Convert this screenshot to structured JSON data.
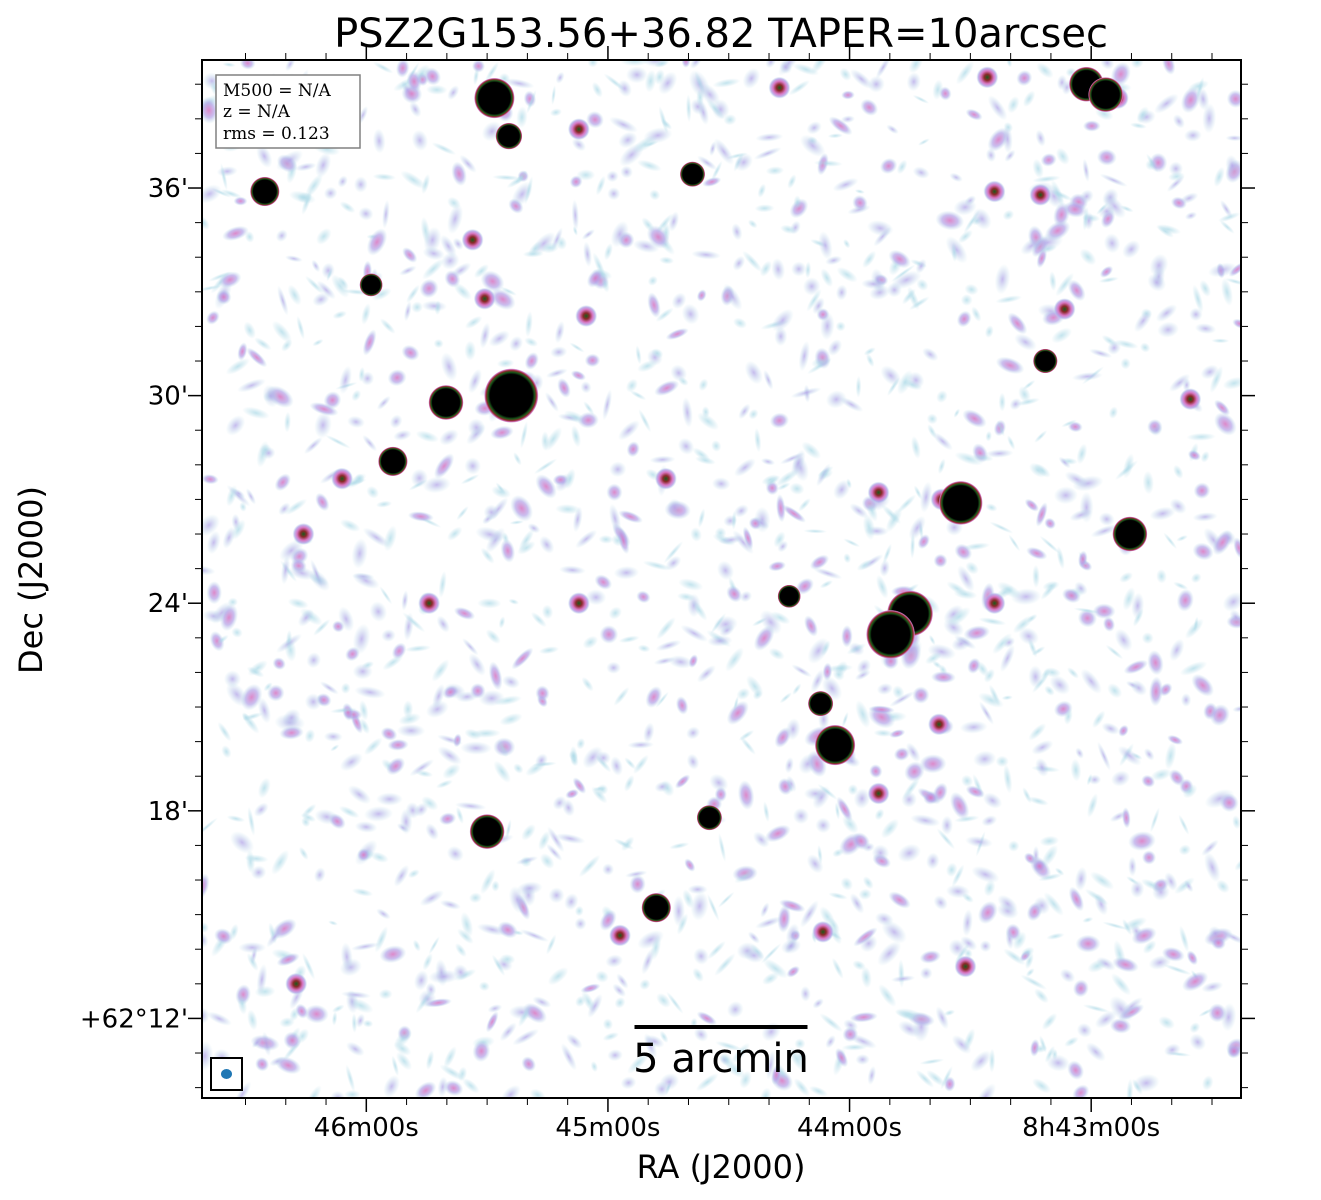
{
  "chart_data": {
    "type": "heatmap",
    "title": "PSZ2G153.56+36.82 TAPER=10arcsec",
    "xlabel": "RA (J2000)",
    "ylabel": "Dec (J2000)",
    "x_ticks": [
      "46m00s",
      "45m00s",
      "44m00s",
      "8h43m00s"
    ],
    "x_tick_values_s": [
      46,
      45,
      44,
      43
    ],
    "y_ticks": [
      "36'",
      "30'",
      "24'",
      "18'",
      "+62°12'"
    ],
    "y_tick_values_arcmin": [
      36,
      30,
      24,
      18,
      12
    ],
    "xlim_ra_min": [
      46.68,
      42.38
    ],
    "ylim_dec_arcmin": [
      9.7,
      39.7
    ],
    "info_box": [
      "M500 = N/A",
      "z = N/A",
      "rms = 0.123"
    ],
    "scalebar_label": "5 arcmin",
    "scalebar_arcmin": 5,
    "grid": false,
    "beam_color": "#1f77b4",
    "colormap": [
      "#ffffff",
      "#add8e6",
      "#b3a3e8",
      "#d874c0",
      "#8b2a2a",
      "#1a5a1a",
      "#000000"
    ],
    "bright_sources": [
      {
        "ra_min": 46.42,
        "dec_arcmin": 35.9,
        "r": 0.34
      },
      {
        "ra_min": 45.47,
        "dec_arcmin": 38.6,
        "r": 0.5
      },
      {
        "ra_min": 45.41,
        "dec_arcmin": 37.5,
        "r": 0.3
      },
      {
        "ra_min": 44.65,
        "dec_arcmin": 36.4,
        "r": 0.28
      },
      {
        "ra_min": 43.02,
        "dec_arcmin": 39.0,
        "r": 0.42
      },
      {
        "ra_min": 42.94,
        "dec_arcmin": 38.7,
        "r": 0.42
      },
      {
        "ra_min": 44.25,
        "dec_arcmin": 24.2,
        "r": 0.25
      },
      {
        "ra_min": 45.98,
        "dec_arcmin": 33.2,
        "r": 0.25
      },
      {
        "ra_min": 45.67,
        "dec_arcmin": 29.8,
        "r": 0.42
      },
      {
        "ra_min": 45.4,
        "dec_arcmin": 30.0,
        "r": 0.7
      },
      {
        "ra_min": 45.89,
        "dec_arcmin": 28.1,
        "r": 0.34
      },
      {
        "ra_min": 43.54,
        "dec_arcmin": 26.9,
        "r": 0.55
      },
      {
        "ra_min": 43.19,
        "dec_arcmin": 31.0,
        "r": 0.27
      },
      {
        "ra_min": 43.75,
        "dec_arcmin": 23.7,
        "r": 0.58
      },
      {
        "ra_min": 43.83,
        "dec_arcmin": 23.1,
        "r": 0.62
      },
      {
        "ra_min": 42.84,
        "dec_arcmin": 26.0,
        "r": 0.42
      },
      {
        "ra_min": 44.12,
        "dec_arcmin": 21.1,
        "r": 0.28
      },
      {
        "ra_min": 44.06,
        "dec_arcmin": 19.9,
        "r": 0.5
      },
      {
        "ra_min": 45.5,
        "dec_arcmin": 17.4,
        "r": 0.42
      },
      {
        "ra_min": 44.58,
        "dec_arcmin": 17.8,
        "r": 0.28
      },
      {
        "ra_min": 44.8,
        "dec_arcmin": 15.2,
        "r": 0.34
      }
    ],
    "faint_sources": [
      {
        "ra_min": 45.12,
        "dec_arcmin": 37.7
      },
      {
        "ra_min": 44.29,
        "dec_arcmin": 38.9
      },
      {
        "ra_min": 43.43,
        "dec_arcmin": 39.2
      },
      {
        "ra_min": 42.89,
        "dec_arcmin": 38.6
      },
      {
        "ra_min": 43.4,
        "dec_arcmin": 35.9
      },
      {
        "ra_min": 43.21,
        "dec_arcmin": 35.8
      },
      {
        "ra_min": 45.56,
        "dec_arcmin": 34.5
      },
      {
        "ra_min": 45.51,
        "dec_arcmin": 32.8
      },
      {
        "ra_min": 45.09,
        "dec_arcmin": 32.3
      },
      {
        "ra_min": 44.76,
        "dec_arcmin": 27.6
      },
      {
        "ra_min": 43.88,
        "dec_arcmin": 27.2
      },
      {
        "ra_min": 43.62,
        "dec_arcmin": 27.0
      },
      {
        "ra_min": 43.11,
        "dec_arcmin": 32.5
      },
      {
        "ra_min": 42.59,
        "dec_arcmin": 29.9
      },
      {
        "ra_min": 46.1,
        "dec_arcmin": 27.6
      },
      {
        "ra_min": 45.74,
        "dec_arcmin": 24.0
      },
      {
        "ra_min": 45.12,
        "dec_arcmin": 24.0
      },
      {
        "ra_min": 46.26,
        "dec_arcmin": 26.0
      },
      {
        "ra_min": 43.4,
        "dec_arcmin": 24.0
      },
      {
        "ra_min": 43.63,
        "dec_arcmin": 20.5
      },
      {
        "ra_min": 43.88,
        "dec_arcmin": 18.5
      },
      {
        "ra_min": 44.95,
        "dec_arcmin": 14.4
      },
      {
        "ra_min": 44.11,
        "dec_arcmin": 14.5
      },
      {
        "ra_min": 46.29,
        "dec_arcmin": 13.0
      },
      {
        "ra_min": 43.52,
        "dec_arcmin": 13.5
      }
    ]
  }
}
